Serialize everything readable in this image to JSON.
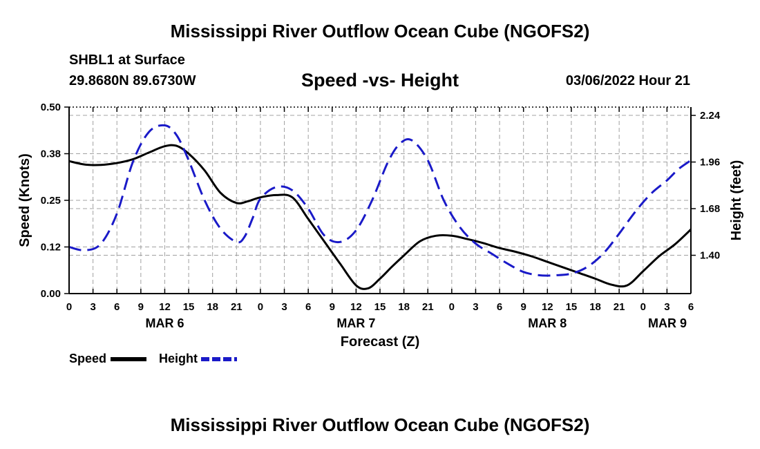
{
  "page": {
    "title_top": "Mississippi River Outflow Ocean Cube (NGOFS2)",
    "title_bottom": "Mississippi River Outflow Ocean Cube (NGOFS2)",
    "station": "SHBL1 at Surface",
    "coords": "29.8680N  89.6730W",
    "subtitle": "Speed -vs- Height",
    "datestamp": "03/06/2022 Hour 21"
  },
  "legend": {
    "speed_label": "Speed",
    "height_label": "Height"
  },
  "colors": {
    "speed": "#000000",
    "height": "#1a1ac8",
    "grid": "#a0a0a0"
  },
  "chart_data": {
    "type": "line",
    "title": "Speed -vs- Height",
    "xlabel": "Forecast (Z)",
    "ylabel": "Speed (Knots)",
    "y2label": "Height (feet)",
    "x_unit": "hours since 2022-03-06 00Z",
    "xlim": [
      -12,
      66
    ],
    "ylim": [
      0,
      0.5
    ],
    "y2lim": [
      1.17,
      2.29
    ],
    "x_ticks": [
      -12,
      -9,
      -6,
      -3,
      0,
      3,
      6,
      9,
      12,
      15,
      18,
      21,
      24,
      27,
      30,
      33,
      36,
      39,
      42,
      45,
      48,
      51,
      54,
      57,
      60,
      63,
      66
    ],
    "x_tick_labels": [
      "0",
      "3",
      "6",
      "9",
      "12",
      "15",
      "18",
      "21",
      "0",
      "3",
      "6",
      "9",
      "12",
      "15",
      "18",
      "21",
      "0",
      "3",
      "6",
      "9",
      "12",
      "15",
      "18",
      "21",
      "0",
      "3",
      "6"
    ],
    "day_labels": [
      {
        "x": 0,
        "label": "MAR 6"
      },
      {
        "x": 24,
        "label": "MAR 7"
      },
      {
        "x": 48,
        "label": "MAR 8"
      },
      {
        "x": 66,
        "label": "MAR 9"
      }
    ],
    "y_ticks": [
      0.0,
      0.125,
      0.25,
      0.375,
      0.5
    ],
    "y_tick_labels": [
      "0.00",
      "0.12",
      "0.25",
      "0.38",
      "0.50"
    ],
    "y2_ticks": [
      1.4,
      1.68,
      1.96,
      2.24
    ],
    "y2_tick_labels": [
      "1.40",
      "1.68",
      "1.96",
      "2.24"
    ],
    "series": [
      {
        "name": "Speed",
        "axis": "left",
        "style": "solid",
        "x": [
          -12,
          -10,
          -8,
          -6,
          -4,
          -2,
          0,
          1.5,
          3,
          5,
          7,
          9,
          10.5,
          12,
          14,
          16,
          18,
          20,
          22,
          24,
          25.5,
          27,
          28.5,
          30,
          32,
          34,
          36,
          38,
          40,
          42,
          44,
          46,
          48,
          50,
          52,
          54,
          56,
          58,
          60,
          62,
          64,
          66
        ],
        "values": [
          0.355,
          0.346,
          0.345,
          0.35,
          0.36,
          0.378,
          0.395,
          0.396,
          0.375,
          0.33,
          0.27,
          0.243,
          0.248,
          0.258,
          0.264,
          0.258,
          0.2,
          0.14,
          0.08,
          0.022,
          0.014,
          0.04,
          0.072,
          0.102,
          0.14,
          0.155,
          0.155,
          0.146,
          0.135,
          0.122,
          0.112,
          0.1,
          0.085,
          0.07,
          0.055,
          0.04,
          0.024,
          0.022,
          0.06,
          0.1,
          0.132,
          0.172
        ]
      },
      {
        "name": "Height",
        "axis": "right",
        "style": "dashed",
        "x": [
          -12,
          -10,
          -8,
          -6,
          -4,
          -2,
          0,
          1.5,
          3,
          5,
          7,
          9,
          10,
          11,
          12,
          14,
          16,
          18,
          20,
          22,
          24,
          26,
          28,
          29.5,
          31,
          33,
          35,
          37,
          39,
          41,
          43,
          45,
          47,
          49,
          51,
          53,
          55,
          57,
          59,
          61,
          63,
          64.5,
          66
        ],
        "values": [
          1.45,
          1.43,
          1.47,
          1.65,
          1.96,
          2.14,
          2.18,
          2.12,
          1.97,
          1.73,
          1.56,
          1.48,
          1.51,
          1.62,
          1.74,
          1.81,
          1.79,
          1.68,
          1.52,
          1.48,
          1.55,
          1.73,
          1.96,
          2.07,
          2.09,
          1.97,
          1.73,
          1.57,
          1.47,
          1.41,
          1.35,
          1.3,
          1.28,
          1.28,
          1.29,
          1.33,
          1.41,
          1.53,
          1.66,
          1.77,
          1.85,
          1.92,
          1.97
        ]
      }
    ]
  }
}
